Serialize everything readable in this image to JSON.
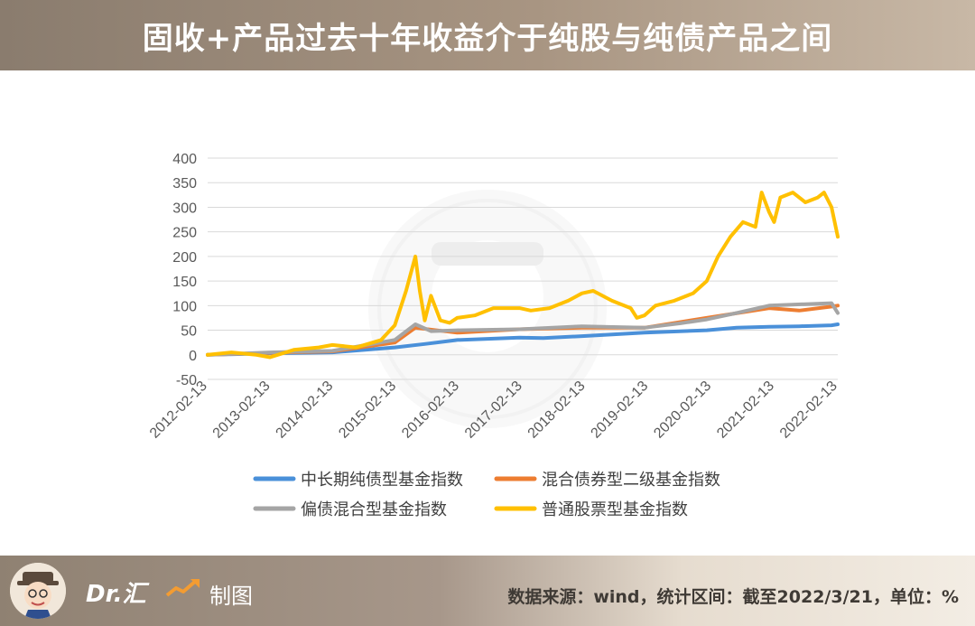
{
  "header": {
    "title": "固收+产品过去十年收益介于纯股与纯债产品之间"
  },
  "footer": {
    "brand": "Dr.汇",
    "made_label": "制图",
    "source": "数据来源：wind，统计区间：截至2022/3/21，单位：%"
  },
  "chart_data": {
    "type": "line",
    "title": "",
    "xlabel": "",
    "ylabel": "",
    "ylim": [
      -50,
      400
    ],
    "yticks": [
      "400",
      "350",
      "300",
      "250",
      "200",
      "150",
      "100",
      "50",
      "0",
      "-50"
    ],
    "xticks": [
      "2012-02-13",
      "2013-02-13",
      "2014-02-13",
      "2015-02-13",
      "2016-02-13",
      "2017-02-13",
      "2018-02-13",
      "2019-02-13",
      "2020-02-13",
      "2021-02-13",
      "2022-02-13"
    ],
    "xlim": [
      2012.12,
      2022.22
    ],
    "grid": true,
    "legend_position": "bottom",
    "series": [
      {
        "name": "中长期纯债型基金指数",
        "color": "#4a90d9",
        "x": [
          2012.12,
          2013.12,
          2014.12,
          2015.12,
          2015.6,
          2016.12,
          2017.12,
          2017.5,
          2018.12,
          2019.12,
          2020.12,
          2020.6,
          2021.12,
          2021.6,
          2022.12,
          2022.22
        ],
        "values": [
          0,
          3,
          5,
          15,
          22,
          30,
          35,
          34,
          38,
          45,
          50,
          55,
          57,
          58,
          60,
          62
        ]
      },
      {
        "name": "混合债券型二级基金指数",
        "color": "#ed7d31",
        "x": [
          2012.12,
          2013.12,
          2014.12,
          2015.12,
          2015.45,
          2016.12,
          2017.12,
          2018.12,
          2019.12,
          2020.12,
          2021.12,
          2021.6,
          2022.12,
          2022.22
        ],
        "values": [
          0,
          4,
          7,
          25,
          55,
          45,
          52,
          55,
          55,
          75,
          95,
          90,
          98,
          100
        ]
      },
      {
        "name": "偏债混合型基金指数",
        "color": "#a5a5a5",
        "x": [
          2012.12,
          2013.12,
          2014.12,
          2015.12,
          2015.45,
          2015.7,
          2016.12,
          2017.12,
          2018.12,
          2019.12,
          2019.7,
          2020.12,
          2020.6,
          2021.12,
          2021.7,
          2022.12,
          2022.22
        ],
        "values": [
          0,
          5,
          8,
          30,
          62,
          48,
          50,
          52,
          58,
          55,
          64,
          72,
          85,
          100,
          103,
          105,
          85
        ]
      },
      {
        "name": "普通股票型基金指数",
        "color": "#ffc000",
        "x": [
          2012.12,
          2012.5,
          2012.9,
          2013.12,
          2013.5,
          2013.9,
          2014.12,
          2014.5,
          2014.9,
          2015.12,
          2015.3,
          2015.45,
          2015.52,
          2015.6,
          2015.7,
          2015.85,
          2016.0,
          2016.12,
          2016.4,
          2016.7,
          2017.12,
          2017.3,
          2017.6,
          2017.9,
          2018.12,
          2018.3,
          2018.6,
          2018.9,
          2019.0,
          2019.12,
          2019.3,
          2019.6,
          2019.9,
          2020.12,
          2020.3,
          2020.5,
          2020.7,
          2020.9,
          2021.0,
          2021.12,
          2021.2,
          2021.3,
          2021.5,
          2021.7,
          2021.9,
          2022.0,
          2022.12,
          2022.22
        ],
        "values": [
          0,
          5,
          0,
          -5,
          10,
          15,
          20,
          15,
          30,
          60,
          130,
          200,
          130,
          70,
          120,
          70,
          65,
          75,
          80,
          95,
          95,
          90,
          95,
          110,
          125,
          130,
          110,
          95,
          75,
          80,
          100,
          110,
          125,
          150,
          200,
          240,
          270,
          260,
          330,
          290,
          270,
          320,
          330,
          310,
          320,
          330,
          300,
          240
        ]
      }
    ]
  }
}
